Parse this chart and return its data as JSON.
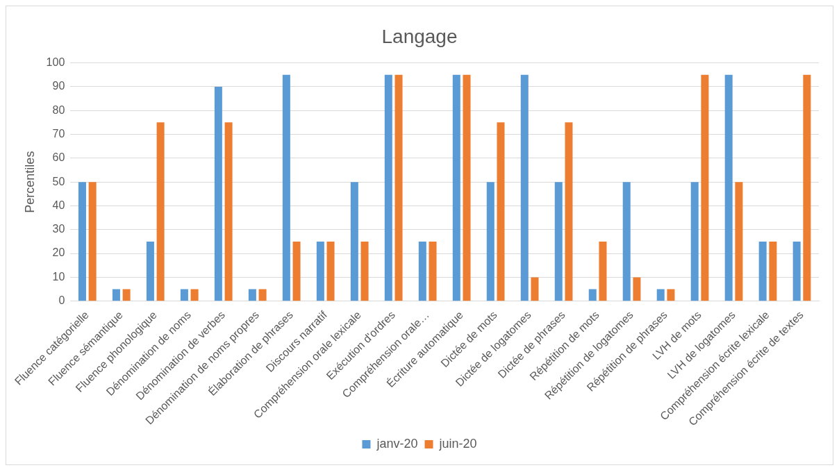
{
  "chart_data": {
    "type": "bar",
    "title": "Langage",
    "ylabel": "Percentiles",
    "categories": [
      "Fluence catégorielle",
      "Fluence sémantique",
      "Fluence phonologique",
      "Dénomination de noms",
      "Dénomination de verbes",
      "Dénomination de noms propres",
      "Élaboration de phrases",
      "Discours narratif",
      "Compréhension orale lexicale",
      "Exécution d'ordres",
      "Compréhension orale…",
      "Écriture automatique",
      "Dictée de mots",
      "Dictée de logatomes",
      "Dictée de phrases",
      "Répétition de mots",
      "Répétition de logatomes",
      "Répétition de phrases",
      "LVH de mots",
      "LVH de logatomes",
      "Compréhension écrite lexicale",
      "Compréhension écrite de textes"
    ],
    "series": [
      {
        "name": "janv-20",
        "color": "#5b9bd5",
        "values": [
          50,
          5,
          25,
          5,
          90,
          5,
          95,
          25,
          50,
          95,
          25,
          95,
          50,
          95,
          50,
          5,
          50,
          5,
          50,
          95,
          25,
          25
        ]
      },
      {
        "name": "juin-20",
        "color": "#ed7d31",
        "values": [
          50,
          5,
          75,
          5,
          75,
          5,
          25,
          25,
          25,
          95,
          25,
          95,
          75,
          10,
          75,
          25,
          10,
          5,
          95,
          50,
          25,
          95
        ]
      }
    ],
    "ylim": [
      0,
      100
    ],
    "yticks": [
      0,
      10,
      20,
      30,
      40,
      50,
      60,
      70,
      80,
      90,
      100
    ],
    "grid": "y",
    "legend": "bottom"
  }
}
